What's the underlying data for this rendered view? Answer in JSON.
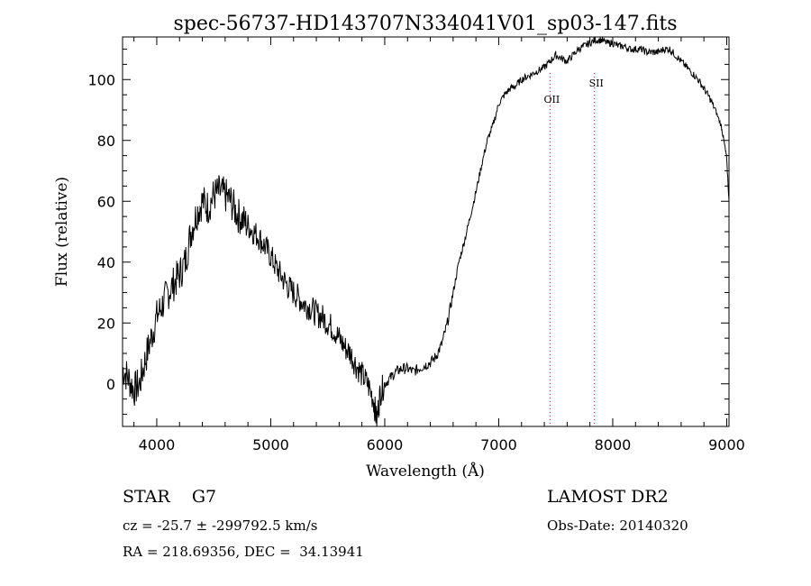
{
  "chart_data": {
    "type": "line",
    "title": "spec-56737-HD143707N334041V01_sp03-147.fits",
    "xlabel": "Wavelength (Å)",
    "ylabel": "Flux (relative)",
    "xlim": [
      3700,
      9020
    ],
    "ylim": [
      -14,
      114
    ],
    "xticks": [
      4000,
      5000,
      6000,
      7000,
      8000,
      9000
    ],
    "yticks": [
      0,
      20,
      40,
      60,
      80,
      100
    ],
    "grid": false,
    "line_color": "#000000",
    "series": [
      {
        "x": [
          3700,
          3750,
          3800,
          3850,
          3900,
          3950,
          4000,
          4050,
          4100,
          4150,
          4200,
          4250,
          4300,
          4350,
          4400,
          4450,
          4500,
          4550,
          4600,
          4650,
          4700,
          4750,
          4800,
          4850,
          4900,
          4950,
          5000,
          5050,
          5100,
          5150,
          5200,
          5250,
          5300,
          5350,
          5400,
          5450,
          5500,
          5550,
          5600,
          5650,
          5700,
          5750,
          5800,
          5850,
          5900,
          5930,
          5960,
          6000,
          6050,
          6100,
          6150,
          6200,
          6250,
          6300,
          6350,
          6400,
          6450,
          6500,
          6550,
          6600,
          6650,
          6700,
          6750,
          6800,
          6850,
          6900,
          6950,
          7000,
          7050,
          7100,
          7150,
          7200,
          7250,
          7300,
          7350,
          7400,
          7450,
          7500,
          7550,
          7600,
          7650,
          7700,
          7750,
          7800,
          7850,
          7900,
          7950,
          8000,
          8050,
          8100,
          8150,
          8200,
          8250,
          8300,
          8350,
          8400,
          8450,
          8500,
          8550,
          8600,
          8650,
          8700,
          8750,
          8800,
          8850,
          8900,
          8950,
          8975,
          9000,
          9020
        ],
        "y": [
          5,
          2,
          -2,
          0,
          8,
          15,
          22,
          26,
          30,
          33,
          36,
          40,
          50,
          56,
          60,
          58,
          62,
          63,
          62,
          60,
          56,
          54,
          52,
          50,
          48,
          45,
          42,
          38,
          35,
          32,
          30,
          28,
          26,
          25,
          23,
          22,
          20,
          18,
          15,
          12,
          10,
          6,
          3,
          0,
          -5,
          -12,
          -3,
          0,
          2,
          4,
          5,
          5,
          4,
          5,
          6,
          7,
          9,
          13,
          20,
          30,
          40,
          47,
          55,
          63,
          72,
          80,
          85,
          92,
          95,
          97,
          98,
          100,
          101,
          102,
          103,
          104,
          106,
          108,
          107,
          106,
          108,
          110,
          111,
          112,
          113,
          113,
          112,
          112,
          111,
          111,
          110,
          110,
          110,
          109,
          109,
          109,
          110,
          110,
          108,
          106,
          104,
          102,
          100,
          97,
          94,
          90,
          85,
          80,
          74,
          60
        ]
      }
    ],
    "annotations": [
      {
        "label": "OII",
        "x": 7450
      },
      {
        "label": "SII",
        "x": 7840
      }
    ]
  },
  "info": {
    "class_label": "STAR",
    "subclass": "G7",
    "survey": "LAMOST DR2",
    "cz": "cz = -25.7 ± -299792.5 km/s",
    "obs_date": "Obs-Date: 20140320",
    "coords": "RA = 218.69356, DEC =  34.13941"
  }
}
